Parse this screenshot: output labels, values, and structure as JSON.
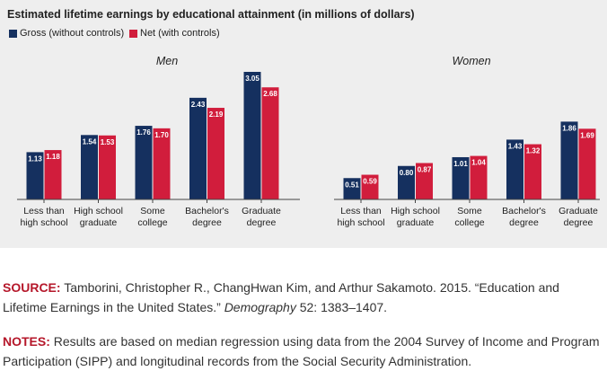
{
  "chart_data": {
    "type": "bar",
    "title": "Estimated lifetime earnings by educational attainment (in millions of dollars)",
    "colors": {
      "gross": "#15305f",
      "net": "#d11d3c"
    },
    "categories": [
      [
        "Less than",
        "high school"
      ],
      [
        "High school",
        "graduate"
      ],
      [
        "Some",
        "college"
      ],
      [
        "Bachelor's",
        "degree"
      ],
      [
        "Graduate",
        "degree"
      ]
    ],
    "legend": [
      {
        "name": "Gross (without controls)",
        "color": "#15305f"
      },
      {
        "name": "Net (with controls)",
        "color": "#d11d3c"
      }
    ],
    "panels": [
      {
        "subtitle": "Men",
        "series": [
          {
            "name": "Gross (without controls)",
            "values": [
              1.13,
              1.54,
              1.76,
              2.43,
              3.05
            ]
          },
          {
            "name": "Net (with controls)",
            "values": [
              1.18,
              1.53,
              1.7,
              2.19,
              2.68
            ]
          }
        ]
      },
      {
        "subtitle": "Women",
        "series": [
          {
            "name": "Gross (without controls)",
            "values": [
              0.51,
              0.8,
              1.01,
              1.43,
              1.86
            ]
          },
          {
            "name": "Net (with controls)",
            "values": [
              0.59,
              0.87,
              1.04,
              1.32,
              1.69
            ]
          }
        ]
      }
    ],
    "ylim": [
      0,
      3.05
    ],
    "grid": false
  },
  "source": {
    "label": "SOURCE:",
    "text": " Tamborini, Christopher R., ChangHwan Kim, and Arthur Sakamoto. 2015. “Education and Lifetime Earnings in the United States.” ",
    "journal": "Demography",
    "tail": " 52: 1383–1407."
  },
  "notes": {
    "label": "NOTES:",
    "text": " Results are based on median regression using data from the 2004 Survey of Income and Program Participation (SIPP) and longitudinal records from the Social Security Administration."
  }
}
